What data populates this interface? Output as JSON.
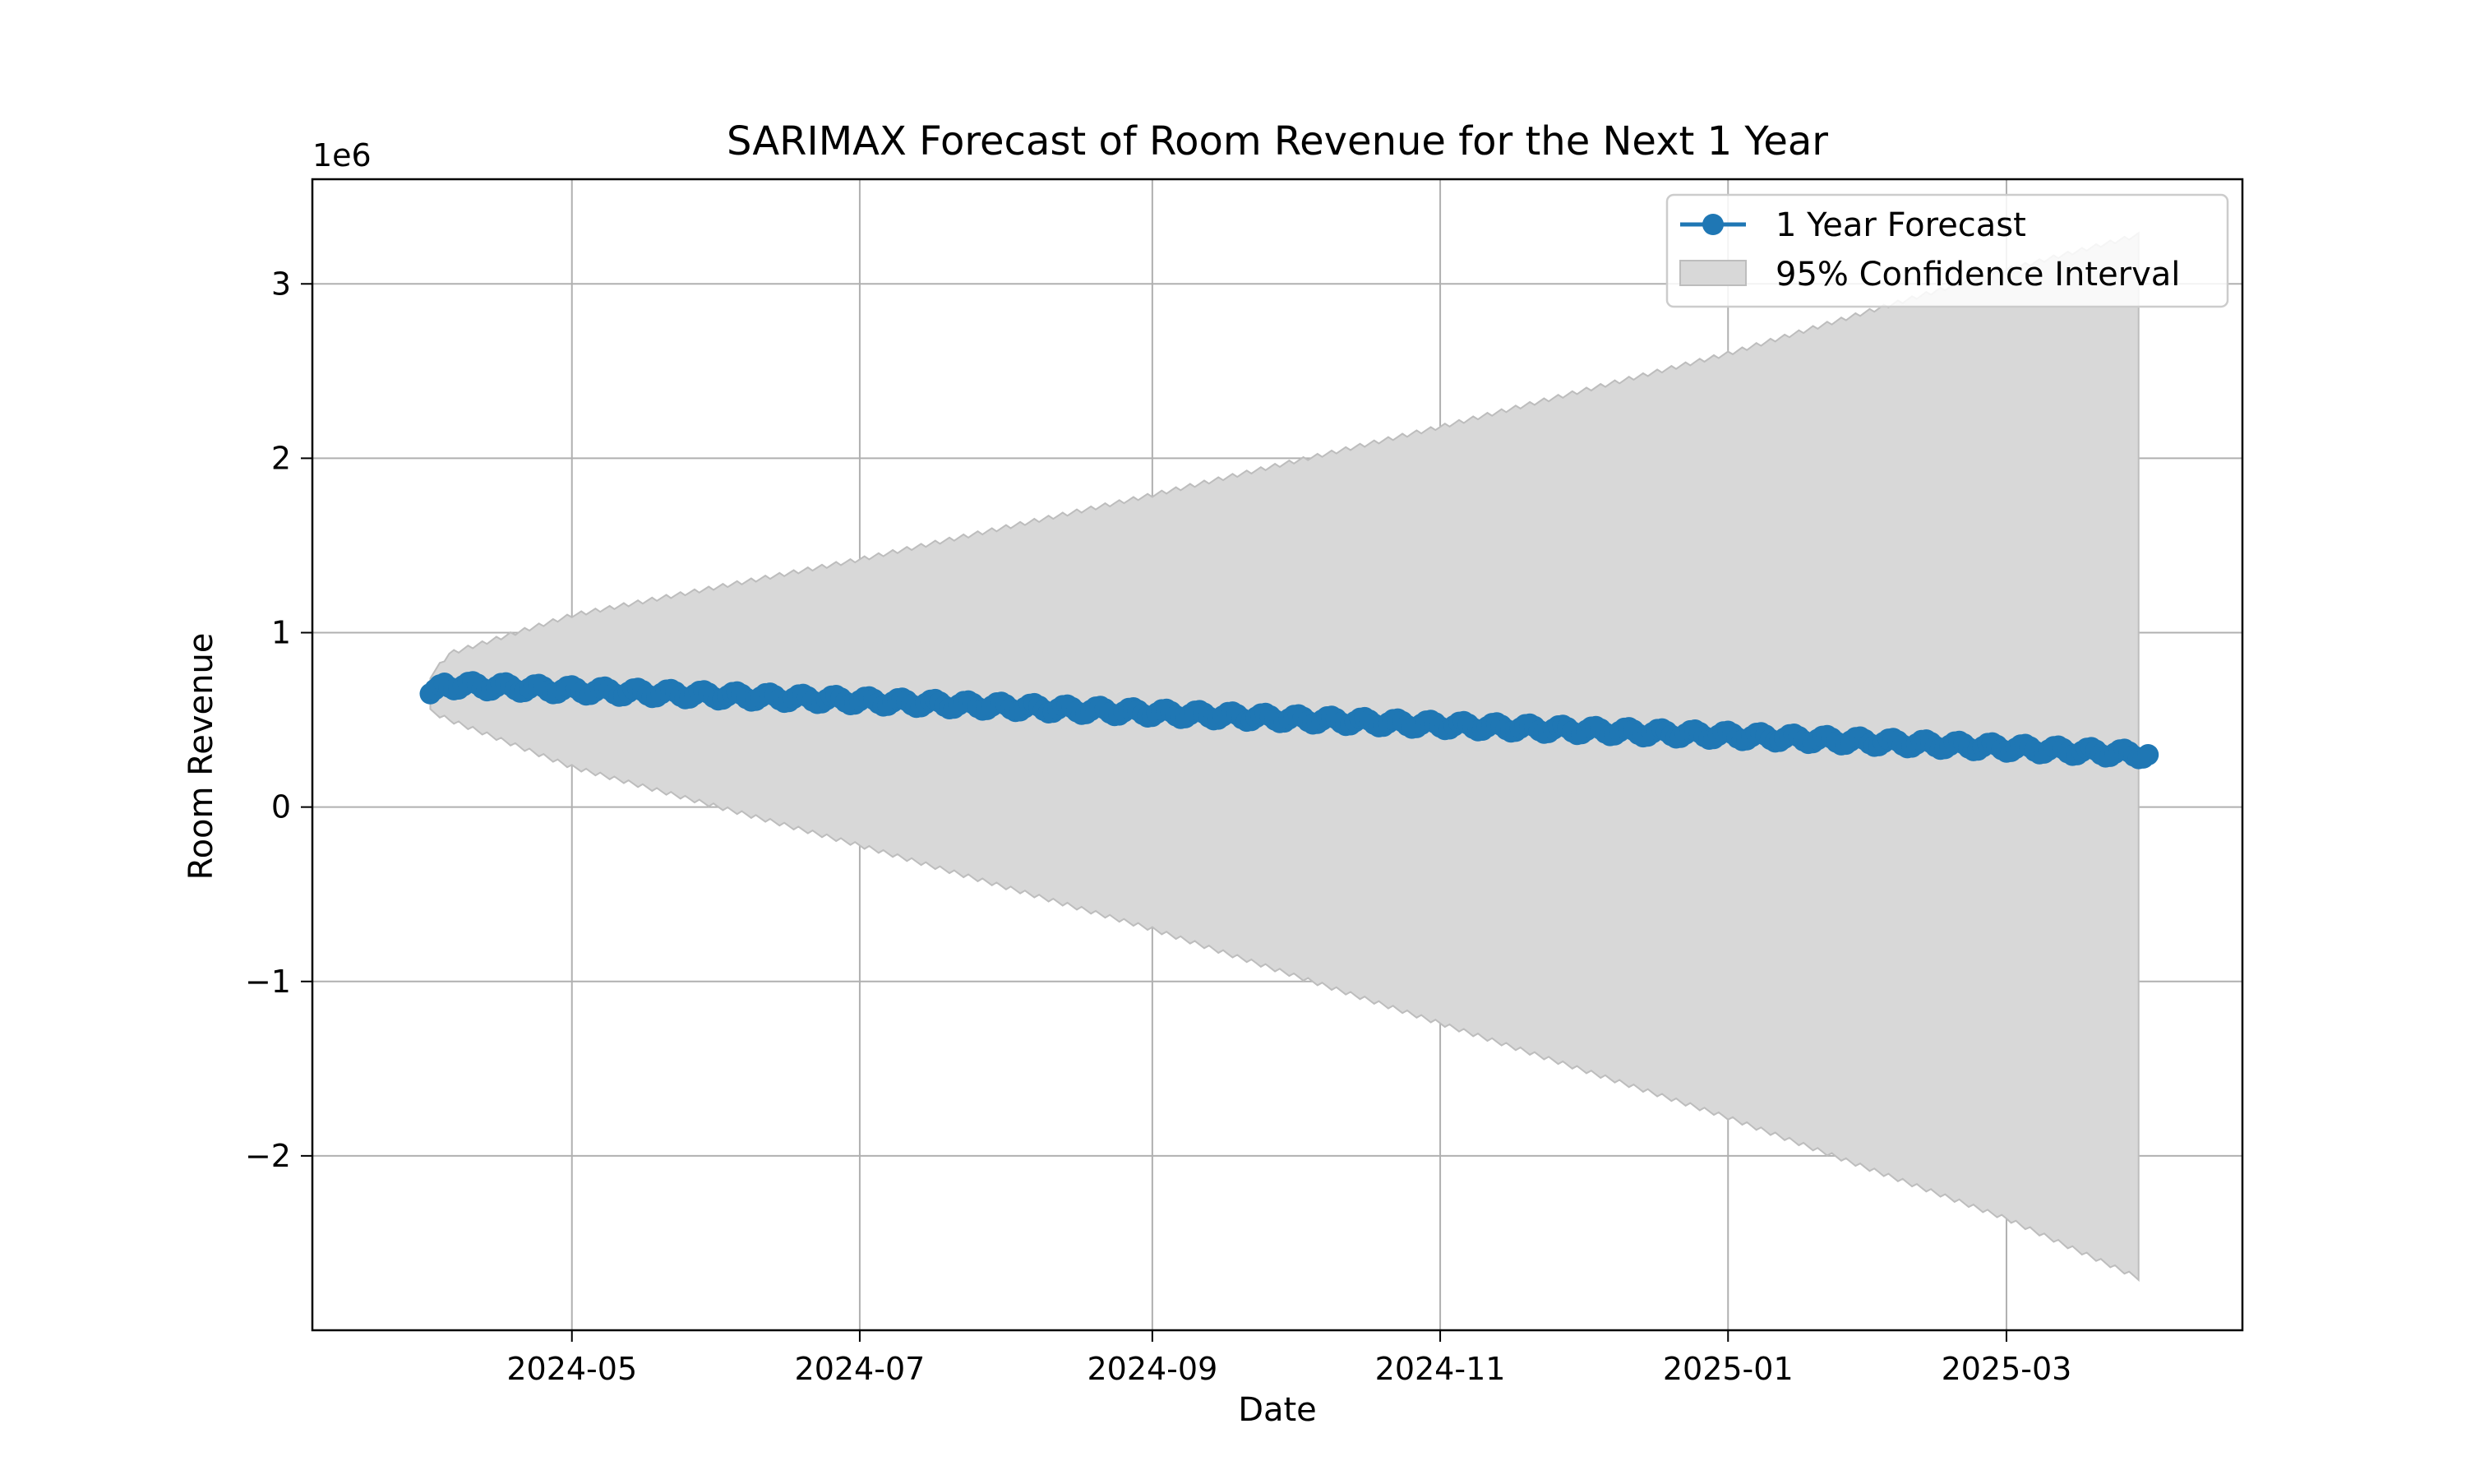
{
  "chart_data": {
    "type": "line",
    "title": "SARIMAX Forecast of Room Revenue for the Next 1 Year",
    "xlabel": "Date",
    "ylabel": "Room Revenue",
    "y_offset_text": "1e6",
    "x_range": [
      "2024-03-07",
      "2025-04-20"
    ],
    "ylim": [
      -3.0,
      3.6
    ],
    "grid": true,
    "legend_position": "upper right",
    "x_ticks": [
      "2024-05",
      "2024-07",
      "2024-09",
      "2024-11",
      "2025-01",
      "2025-03"
    ],
    "y_ticks": [
      "−2",
      "−1",
      "0",
      "1",
      "2",
      "3"
    ],
    "y_tick_values": [
      -2,
      -1,
      0,
      1,
      2,
      3
    ],
    "forecast_start": "2024-04-01",
    "forecast_end": "2025-03-31",
    "colors": {
      "forecast": "#1f77b4",
      "confidence_fill": "#d8d8d8",
      "confidence_edge": "#bdbdbd",
      "grid": "#b0b0b0"
    },
    "series": [
      {
        "name": "1 Year Forecast",
        "x": [
          "2024-04-01",
          "2024-04-03",
          "2024-04-15",
          "2024-05-01",
          "2024-07-01",
          "2024-09-01",
          "2024-11-01",
          "2025-01-01",
          "2025-03-01",
          "2025-03-31"
        ],
        "y": [
          0.65,
          0.7,
          0.69,
          0.67,
          0.61,
          0.54,
          0.47,
          0.41,
          0.34,
          0.3
        ],
        "weekly_amplitude": 0.025
      },
      {
        "name": "95% Confidence Interval",
        "x": [
          "2024-04-01",
          "2024-04-05",
          "2024-05-01",
          "2024-07-01",
          "2024-09-01",
          "2024-11-01",
          "2025-01-01",
          "2025-03-01",
          "2025-03-29"
        ],
        "lower": [
          0.55,
          0.5,
          0.23,
          -0.22,
          -0.7,
          -1.24,
          -1.78,
          -2.36,
          -2.7
        ],
        "upper": [
          0.75,
          0.88,
          1.1,
          1.42,
          1.79,
          2.18,
          2.6,
          3.08,
          3.28
        ]
      }
    ]
  }
}
